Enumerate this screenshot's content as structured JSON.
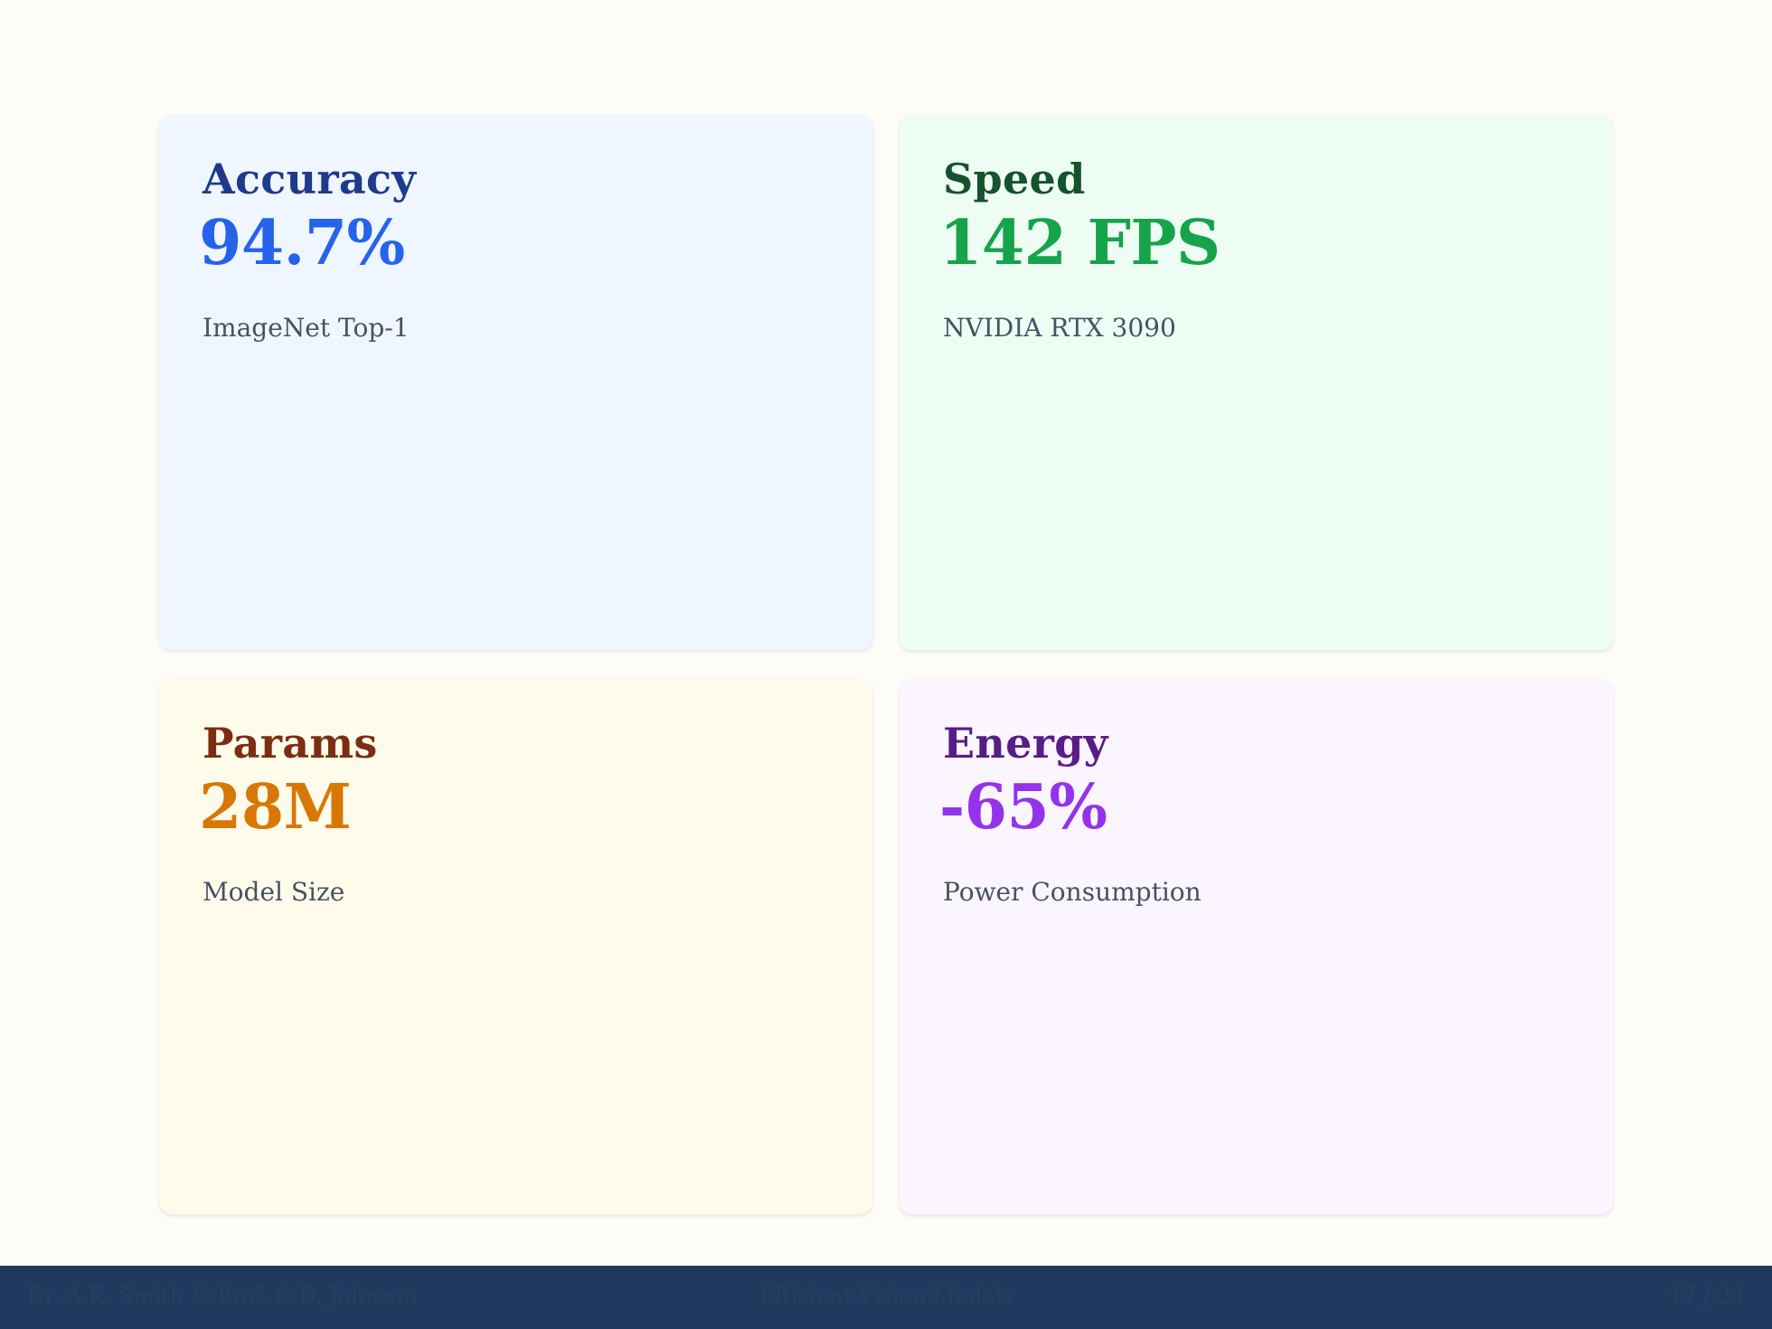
{
  "cards": [
    {
      "title": "Accuracy",
      "value": "94.7%",
      "caption": "ImageNet Top-1",
      "bg_color": "#eff6ff",
      "title_color": "#1e3a8a",
      "value_color": "#2563eb"
    },
    {
      "title": "Speed",
      "value": "142 FPS",
      "caption": "NVIDIA RTX 3090",
      "bg_color": "#eefdf4",
      "title_color": "#14532d",
      "value_color": "#16a34a"
    },
    {
      "title": "Params",
      "value": "28M",
      "caption": "Model Size",
      "bg_color": "#fffbeb",
      "title_color": "#7c2d12",
      "value_color": "#d97706"
    },
    {
      "title": "Energy",
      "value": "-65%",
      "caption": "Power Consumption",
      "bg_color": "#faf5ff",
      "title_color": "#581c87",
      "value_color": "#9333ea"
    }
  ],
  "footer": {
    "left": "Dr. A.K. Smith & Prof. C.D. Johnson",
    "center": "Efficient Vision Models",
    "right": "17 / 24"
  }
}
